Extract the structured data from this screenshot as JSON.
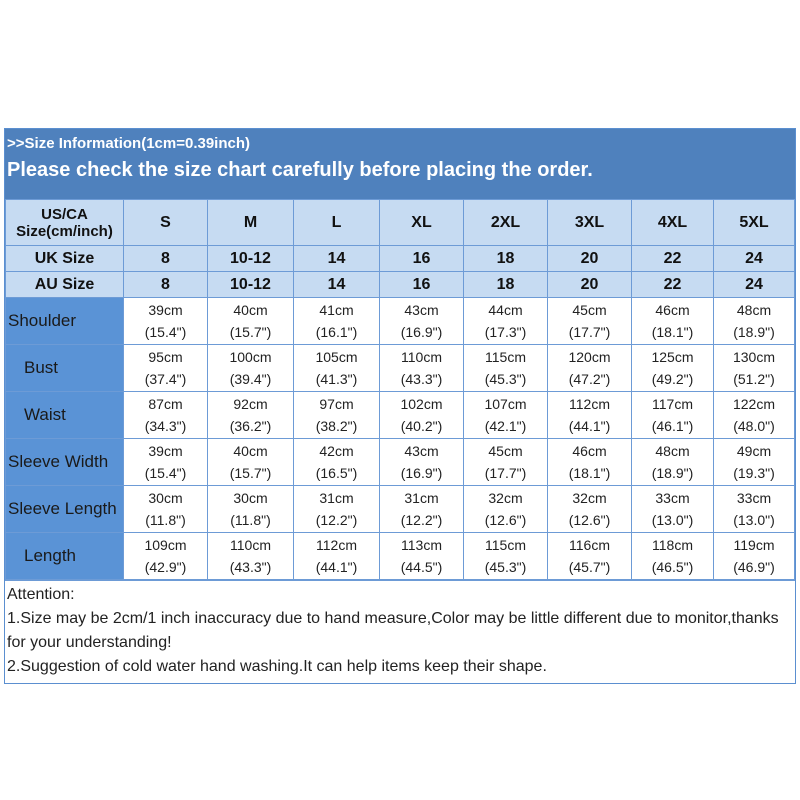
{
  "banner": {
    "line1": ">>Size Information(1cm=0.39inch)",
    "line2": "Please check the size chart carefully before placing the order."
  },
  "header": {
    "label": "US/CA Size(cm/inch)",
    "sizes": [
      "S",
      "M",
      "L",
      "XL",
      "2XL",
      "3XL",
      "4XL",
      "5XL"
    ]
  },
  "uk": {
    "label": "UK Size",
    "values": [
      "8",
      "10-12",
      "14",
      "16",
      "18",
      "20",
      "22",
      "24"
    ]
  },
  "au": {
    "label": "AU Size",
    "values": [
      "8",
      "10-12",
      "14",
      "16",
      "18",
      "20",
      "22",
      "24"
    ]
  },
  "rows": [
    {
      "label": "Shoulder",
      "cm": [
        "39cm",
        "40cm",
        "41cm",
        "43cm",
        "44cm",
        "45cm",
        "46cm",
        "48cm"
      ],
      "inch": [
        "(15.4\")",
        "(15.7\")",
        "(16.1\")",
        "(16.9\")",
        "(17.3\")",
        "(17.7\")",
        "(18.1\")",
        "(18.9\")"
      ]
    },
    {
      "label": "Bust",
      "cm": [
        "95cm",
        "100cm",
        "105cm",
        "110cm",
        "115cm",
        "120cm",
        "125cm",
        "130cm"
      ],
      "inch": [
        "(37.4\")",
        "(39.4\")",
        "(41.3\")",
        "(43.3\")",
        "(45.3\")",
        "(47.2\")",
        "(49.2\")",
        "(51.2\")"
      ]
    },
    {
      "label": "Waist",
      "cm": [
        "87cm",
        "92cm",
        "97cm",
        "102cm",
        "107cm",
        "112cm",
        "117cm",
        "122cm"
      ],
      "inch": [
        "(34.3\")",
        "(36.2\")",
        "(38.2\")",
        "(40.2\")",
        "(42.1\")",
        "(44.1\")",
        "(46.1\")",
        "(48.0\")"
      ]
    },
    {
      "label": "Sleeve Width",
      "cm": [
        "39cm",
        "40cm",
        "42cm",
        "43cm",
        "45cm",
        "46cm",
        "48cm",
        "49cm"
      ],
      "inch": [
        "(15.4\")",
        "(15.7\")",
        "(16.5\")",
        "(16.9\")",
        "(17.7\")",
        "(18.1\")",
        "(18.9\")",
        "(19.3\")"
      ]
    },
    {
      "label": "Sleeve Length",
      "cm": [
        "30cm",
        "30cm",
        "31cm",
        "31cm",
        "32cm",
        "32cm",
        "33cm",
        "33cm"
      ],
      "inch": [
        "(11.8\")",
        "(11.8\")",
        "(12.2\")",
        "(12.2\")",
        "(12.6\")",
        "(12.6\")",
        "(13.0\")",
        "(13.0\")"
      ]
    },
    {
      "label": "Length",
      "cm": [
        "109cm",
        "110cm",
        "112cm",
        "113cm",
        "115cm",
        "116cm",
        "118cm",
        "119cm"
      ],
      "inch": [
        "(42.9\")",
        "(43.3\")",
        "(44.1\")",
        "(44.5\")",
        "(45.3\")",
        "(45.7\")",
        "(46.5\")",
        "(46.9\")"
      ]
    }
  ],
  "attention": {
    "title": "Attention:",
    "note1": "1.Size may be 2cm/1 inch inaccuracy due to hand measure,Color may be little different due to monitor,thanks for your understanding!",
    "note2": "2.Suggestion of cold water hand washing.It can help items keep their shape."
  },
  "colors": {
    "banner": "#4f81bd",
    "header_cell": "#c6dbf2",
    "label_cell": "#5a93d6"
  }
}
